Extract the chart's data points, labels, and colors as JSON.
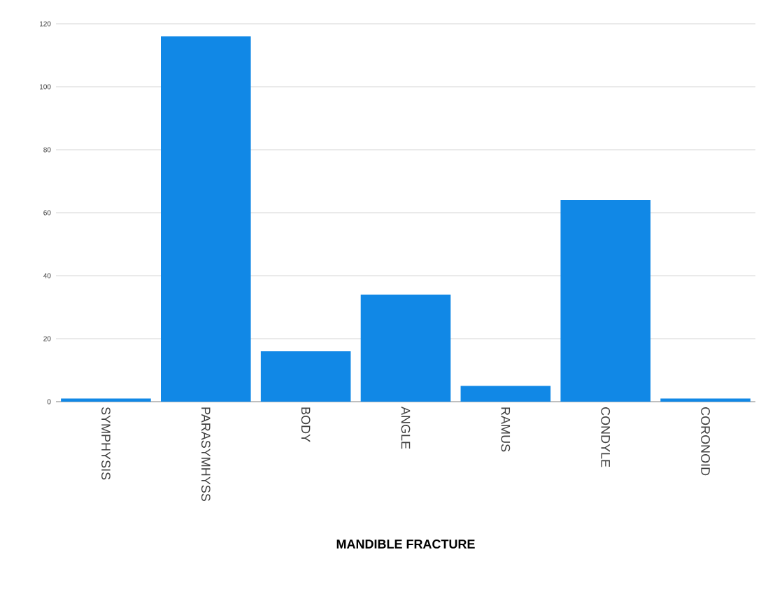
{
  "chart_data": {
    "type": "bar",
    "xlabel": "MANDIBLE FRACTURE",
    "categories": [
      "SYMPHYSIS",
      "PARASYMHYSS",
      "BODY",
      "ANGLE",
      "RAMUS",
      "CONDYLE",
      "CORONOID"
    ],
    "values": [
      1,
      116,
      16,
      34,
      5,
      64,
      1
    ],
    "color": "#1188e6",
    "ylim": [
      0,
      120
    ],
    "yticks": [
      0,
      20,
      40,
      60,
      80,
      100,
      120
    ],
    "grid": "y"
  }
}
